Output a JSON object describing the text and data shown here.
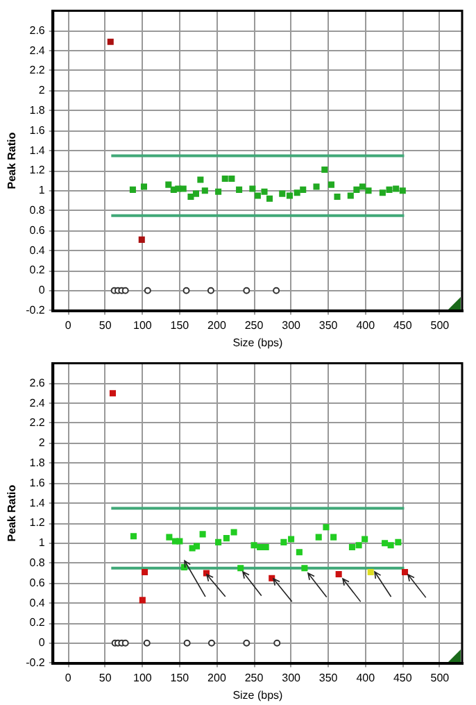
{
  "chart_data": [
    {
      "type": "scatter",
      "xlabel": "Size (bps)",
      "ylabel": "Peak Ratio",
      "xlim": [
        -20,
        530
      ],
      "ylim": [
        -0.2,
        2.8
      ],
      "xticks": [
        0,
        50,
        100,
        150,
        200,
        250,
        300,
        350,
        400,
        450,
        500
      ],
      "yticks": [
        -0.2,
        0,
        0.2,
        0.4,
        0.6,
        0.8,
        1,
        1.2,
        1.4,
        1.6,
        1.8,
        2,
        2.2,
        2.4,
        2.6
      ],
      "grid": true,
      "marker": "square",
      "legend": false,
      "series": [
        {
          "color": "#22aa22",
          "x": [
            87,
            102,
            135,
            142,
            148,
            155,
            165,
            172,
            178,
            184,
            202,
            211,
            220,
            230,
            248,
            255,
            264,
            271,
            288,
            298,
            308,
            316,
            334,
            345,
            354,
            362,
            380,
            388,
            396,
            404,
            423,
            432,
            441,
            450
          ],
          "values": [
            1.01,
            1.04,
            1.06,
            1.01,
            1.02,
            1.02,
            0.94,
            0.97,
            1.11,
            1.0,
            0.99,
            1.12,
            1.12,
            1.01,
            1.02,
            0.95,
            0.99,
            0.92,
            0.97,
            0.95,
            0.98,
            1.01,
            1.04,
            1.21,
            1.06,
            0.94,
            0.95,
            1.01,
            1.04,
            1.0,
            0.98,
            1.01,
            1.02,
            1.0
          ]
        },
        {
          "color": "#aa1111",
          "x": [
            57,
            99
          ],
          "values": [
            2.49,
            0.51
          ]
        },
        {
          "color": "#333333",
          "marker": "circle",
          "x": [
            62,
            67,
            72,
            77,
            107,
            159,
            192,
            240,
            280
          ],
          "values": [
            0,
            0,
            0,
            0,
            0,
            0,
            0,
            0,
            0
          ]
        },
        {
          "type": "line",
          "color": "#40a878",
          "marker": "none",
          "x": [
            58,
            452
          ],
          "values": [
            1.35,
            1.35
          ]
        },
        {
          "type": "line",
          "color": "#40a878",
          "marker": "none",
          "x": [
            58,
            452
          ],
          "values": [
            0.75,
            0.75
          ]
        }
      ]
    },
    {
      "type": "scatter",
      "xlabel": "Size (bps)",
      "ylabel": "Peak Ratio",
      "xlim": [
        -20,
        530
      ],
      "ylim": [
        -0.2,
        2.8
      ],
      "xticks": [
        0,
        50,
        100,
        150,
        200,
        250,
        300,
        350,
        400,
        450,
        500
      ],
      "yticks": [
        -0.2,
        0,
        0.2,
        0.4,
        0.6,
        0.8,
        1,
        1.2,
        1.4,
        1.6,
        1.8,
        2,
        2.2,
        2.4,
        2.6
      ],
      "grid": true,
      "marker": "square",
      "legend": false,
      "series": [
        {
          "color": "#22cc22",
          "x": [
            88,
            136,
            144,
            150,
            156,
            167,
            173,
            181,
            202,
            213,
            223,
            232,
            250,
            258,
            266,
            290,
            300,
            311,
            318,
            337,
            347,
            357,
            382,
            391,
            399,
            426,
            434,
            444
          ],
          "values": [
            1.07,
            1.06,
            1.02,
            1.02,
            0.76,
            0.95,
            0.97,
            1.09,
            1.01,
            1.05,
            1.11,
            0.75,
            0.98,
            0.96,
            0.96,
            1.01,
            1.04,
            0.91,
            0.75,
            1.06,
            1.16,
            1.06,
            0.96,
            0.98,
            1.04,
            1.0,
            0.98,
            1.01
          ]
        },
        {
          "color": "#cc1111",
          "x": [
            60,
            100,
            103,
            186,
            274,
            364,
            453
          ],
          "values": [
            2.5,
            0.43,
            0.71,
            0.7,
            0.65,
            0.69,
            0.71
          ]
        },
        {
          "color": "#dddd22",
          "x": [
            407
          ],
          "values": [
            0.71
          ]
        },
        {
          "color": "#333333",
          "marker": "circle",
          "x": [
            63,
            67,
            72,
            77,
            106,
            160,
            193,
            240,
            281
          ],
          "values": [
            0,
            0,
            0,
            0,
            0,
            0,
            0,
            0,
            0
          ]
        },
        {
          "type": "line",
          "color": "#40a878",
          "marker": "none",
          "x": [
            58,
            452
          ],
          "values": [
            1.35,
            1.35
          ]
        },
        {
          "type": "line",
          "color": "#40a878",
          "marker": "none",
          "x": [
            58,
            452
          ],
          "values": [
            0.75,
            0.75
          ]
        }
      ]
    }
  ]
}
